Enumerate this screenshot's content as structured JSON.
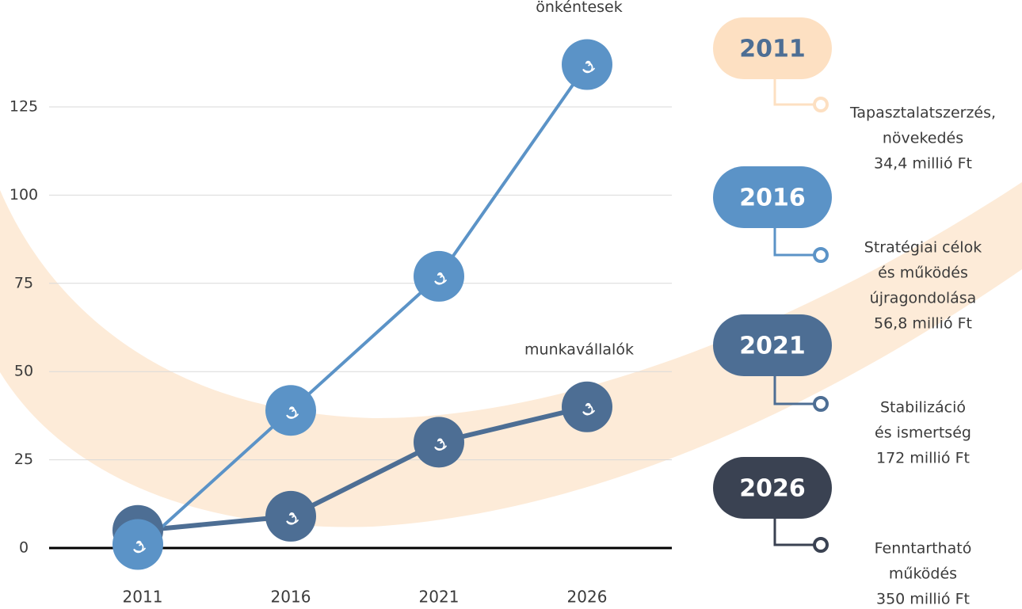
{
  "chart_data": {
    "type": "line",
    "categories": [
      "2011",
      "2016",
      "2021",
      "2026"
    ],
    "series": [
      {
        "name": "önkéntesek",
        "color": "#5b93c7",
        "values": [
          1,
          39,
          77,
          137
        ]
      },
      {
        "name": "munkavállalók",
        "color": "#4d6e94",
        "values": [
          5,
          9,
          30,
          40
        ]
      }
    ],
    "ylim": [
      0,
      150
    ],
    "yticks": [
      0,
      25,
      50,
      75,
      100,
      125
    ],
    "grid": true
  },
  "timeline": {
    "items": [
      {
        "year": "2011",
        "color": "#fde0c2",
        "text_color": "#4d6e94",
        "lines": [
          "Tapasztalatszerzés,",
          "növekedés",
          "34,4 millió Ft"
        ]
      },
      {
        "year": "2016",
        "color": "#5b93c7",
        "text_color": "#ffffff",
        "lines": [
          "Stratégiai célok",
          "és működés",
          "újragondolása",
          "56,8 millió Ft"
        ]
      },
      {
        "year": "2021",
        "color": "#4d6e94",
        "text_color": "#ffffff",
        "lines": [
          "Stabilizáció",
          "és ismertség",
          "172 millió Ft"
        ]
      },
      {
        "year": "2026",
        "color": "#3a4252",
        "text_color": "#ffffff",
        "lines": [
          "Fenntartható",
          "működés",
          "350 millió Ft"
        ]
      }
    ]
  }
}
